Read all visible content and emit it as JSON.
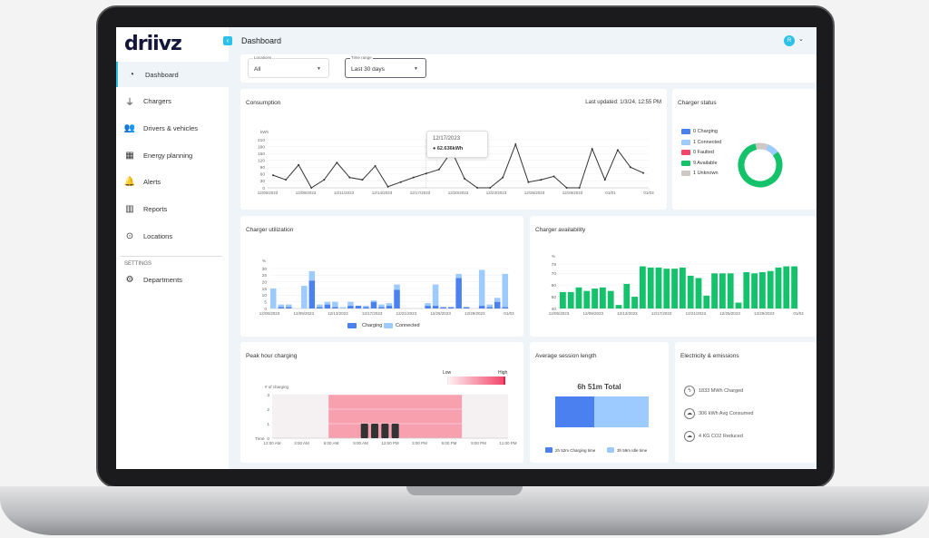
{
  "brand": "driivz",
  "header": {
    "title": "Dashboard",
    "avatar": "R"
  },
  "sidebar": {
    "items": [
      {
        "label": "Dashboard",
        "icon": "gauge-icon",
        "glyph": "◔"
      },
      {
        "label": "Chargers",
        "icon": "plug-icon",
        "glyph": "⏚"
      },
      {
        "label": "Drivers & vehicles",
        "icon": "users-icon",
        "glyph": "👥"
      },
      {
        "label": "Energy planning",
        "icon": "calendar-icon",
        "glyph": "▦"
      },
      {
        "label": "Alerts",
        "icon": "bell-icon",
        "glyph": "🔔"
      },
      {
        "label": "Reports",
        "icon": "bar-chart-icon",
        "glyph": "▥"
      },
      {
        "label": "Locations",
        "icon": "location-pin-icon",
        "glyph": "⊙"
      }
    ],
    "settings_label": "SETTINGS",
    "settings_items": [
      {
        "label": "Departments",
        "icon": "departments-icon",
        "glyph": "⚙"
      }
    ]
  },
  "filters": {
    "locations": {
      "label": "Locations",
      "value": "All"
    },
    "time_range": {
      "label": "Time range",
      "value": "Last 30 days"
    }
  },
  "colors": {
    "accent": "#2cc1e8",
    "charging": "#4a80f0",
    "connected": "#9ecbff",
    "faulted": "#f2476a",
    "available": "#13c26b",
    "unknown": "#cfc6c6"
  },
  "consumption": {
    "title": "Consumption",
    "last_updated": "Last updated: 1/3/24, 12:55 PM",
    "tooltip": {
      "date": "12/17/2023",
      "value": "62.636kWh"
    }
  },
  "charger_status": {
    "title": "Charger status",
    "legend": [
      {
        "label": "0 Charging",
        "color": "#4a80f0",
        "value": 0
      },
      {
        "label": "1 Connected",
        "color": "#9ecbff",
        "value": 1
      },
      {
        "label": "0 Faulted",
        "color": "#f2476a",
        "value": 0
      },
      {
        "label": "9 Available",
        "color": "#13c26b",
        "value": 9
      },
      {
        "label": "1 Unknown",
        "color": "#cfc6c6",
        "value": 1
      }
    ]
  },
  "utilization": {
    "title": "Charger utilization"
  },
  "availability": {
    "title": "Charger availability"
  },
  "peak": {
    "title": "Peak hour charging",
    "low": "Low",
    "high": "High"
  },
  "session": {
    "title": "Average session length",
    "total": "6h 51m Total",
    "charging_label": "2h 52m Charging time",
    "idle_label": "3h 59m Idle time",
    "charging_minutes": 172,
    "idle_minutes": 239
  },
  "electricity": {
    "title": "Electricity & emissions",
    "items": [
      {
        "label": "1833 MWh Charged",
        "icon": "bolt-icon",
        "glyph": "ϟ"
      },
      {
        "label": "306 kWh Avg Consumed",
        "icon": "car-cloud-icon",
        "glyph": "☁"
      },
      {
        "label": "4 KG CO2 Reduced",
        "icon": "cloud-icon",
        "glyph": "☁"
      }
    ]
  },
  "chart_data": [
    {
      "id": "consumption",
      "type": "line",
      "ylabel": "kWh",
      "ylim": [
        0,
        210
      ],
      "yticks": [
        0,
        30,
        60,
        90,
        120,
        150,
        180,
        210
      ],
      "x": [
        "12/05",
        "12/06",
        "12/07",
        "12/08",
        "12/09",
        "12/10",
        "12/11",
        "12/12",
        "12/13",
        "12/14",
        "12/15",
        "12/16",
        "12/17",
        "12/18",
        "12/19",
        "12/20",
        "12/21",
        "12/22",
        "12/23",
        "12/24",
        "12/25",
        "12/26",
        "12/27",
        "12/28",
        "12/29",
        "12/30",
        "12/31",
        "01/01",
        "01/02",
        "01/03"
      ],
      "xticks": [
        "12/05/2023",
        "12/08/2023",
        "12/11/2023",
        "12/14/2023",
        "12/17/2023",
        "12/20/2023",
        "12/23/2023",
        "12/26/2023",
        "12/29/2023",
        "01/01",
        "01/03"
      ],
      "values": [
        55,
        35,
        100,
        0,
        35,
        110,
        45,
        35,
        95,
        5,
        25,
        45,
        62.6,
        80,
        160,
        40,
        0,
        0,
        45,
        190,
        25,
        35,
        50,
        0,
        0,
        170,
        35,
        165,
        90,
        65
      ]
    },
    {
      "id": "utilization",
      "type": "bar",
      "stacked": true,
      "ylabel": "%",
      "ylim": [
        0,
        30
      ],
      "yticks": [
        0,
        5,
        10,
        15,
        20,
        25,
        30
      ],
      "xticks": [
        "12/05/2023",
        "12/09/2023",
        "12/13/2023",
        "12/17/2023",
        "12/21/2023",
        "12/25/2023",
        "12/29/2023",
        "01/03"
      ],
      "series": [
        {
          "name": "Charging",
          "values": [
            0,
            1,
            1,
            0,
            0,
            21,
            1,
            3,
            1,
            0,
            2,
            2,
            1,
            5,
            1,
            2,
            14,
            0,
            0,
            0,
            2,
            2,
            1,
            1,
            23,
            1,
            0,
            2,
            1,
            5,
            1
          ]
        },
        {
          "name": "Connected",
          "values": [
            15,
            2,
            2,
            0,
            17,
            7,
            2,
            2,
            4,
            1,
            3,
            0,
            1,
            1,
            2,
            2,
            4,
            0,
            0,
            0,
            2,
            16,
            0,
            0,
            3,
            0,
            0,
            27,
            2,
            3,
            25
          ]
        }
      ]
    },
    {
      "id": "availability",
      "type": "bar",
      "ylabel": "%",
      "ylim": [
        40,
        78
      ],
      "yticks": [
        40,
        50,
        60,
        70,
        78
      ],
      "xticks": [
        "12/05/2023",
        "12/09/2023",
        "12/13/2023",
        "12/17/2023",
        "12/21/2023",
        "12/25/2023",
        "12/29/2023",
        "01/03"
      ],
      "values": [
        54,
        54,
        58,
        55,
        57,
        58,
        55,
        43,
        61,
        50,
        76,
        75,
        75,
        74,
        74,
        75,
        68,
        66,
        51,
        70,
        70,
        70,
        45,
        71,
        70,
        71,
        72,
        75,
        76,
        76
      ]
    },
    {
      "id": "peak",
      "type": "bar",
      "ylabel": "# of charging",
      "xlabel": "Time",
      "ylim": [
        0,
        3
      ],
      "yticks": [
        0,
        1,
        2,
        3
      ],
      "xticks": [
        "12:00 AM",
        "3:00 AM",
        "6:00 AM",
        "9:00 AM",
        "12:00 PM",
        "3:00 PM",
        "6:00 PM",
        "9:00 PM",
        "11:00 PM"
      ],
      "peak_range": [
        5.5,
        18.5
      ],
      "hours": [
        9,
        10,
        11,
        12
      ],
      "values": [
        1,
        1,
        1,
        1
      ]
    }
  ]
}
